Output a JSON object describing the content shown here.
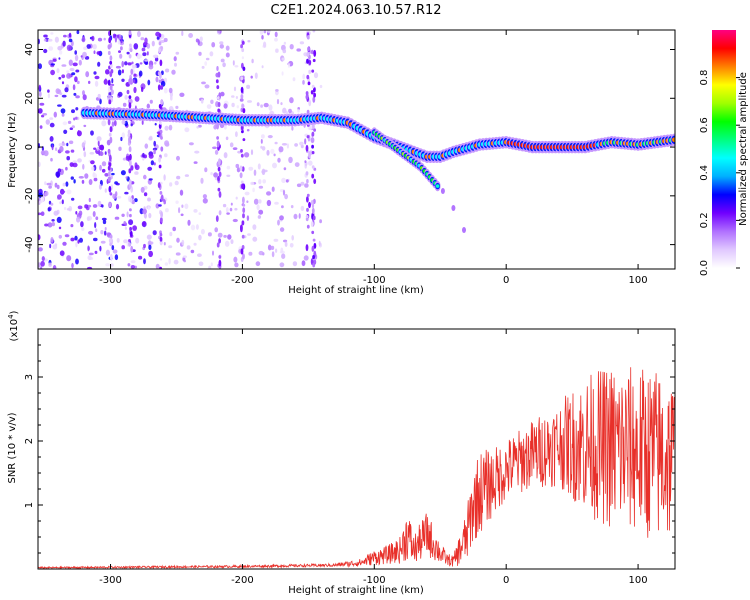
{
  "title": "C2E1.2024.063.10.57.R12",
  "chart_data": [
    {
      "type": "heatmap",
      "xlabel": "Height of straight line (km)",
      "ylabel": "Frequency (Hz)",
      "xlim": [
        -355,
        128
      ],
      "ylim": [
        -50,
        48
      ],
      "xticks": [
        -300,
        -200,
        -100,
        0,
        100
      ],
      "yticks": [
        -40,
        -20,
        0,
        20,
        40
      ],
      "colorbar": {
        "label": "Normalized spectral amplitude",
        "range": [
          0,
          1
        ],
        "ticks": [
          "0.0",
          "0.2",
          "0.4",
          "0.6",
          "0.8"
        ],
        "tick_values": [
          0.0,
          0.2,
          0.4,
          0.6,
          0.8
        ],
        "colors": [
          "#ffffff",
          "#e0c8ff",
          "#b070ff",
          "#7000ff",
          "#0000ff",
          "#00b0ff",
          "#00ffff",
          "#00ff80",
          "#00ff00",
          "#a0ff00",
          "#ffff00",
          "#ff8000",
          "#ff0000",
          "#ff0080"
        ]
      },
      "ridge": {
        "x": [
          -320,
          -260,
          -200,
          -160,
          -140,
          -120,
          -100,
          -80,
          -60,
          -50,
          -40,
          -20,
          0,
          20,
          60,
          80,
          100,
          128
        ],
        "y": [
          14,
          13,
          11,
          11,
          12,
          10,
          4,
          0,
          -4,
          -4,
          -2,
          1,
          2,
          0,
          0,
          2,
          1,
          3
        ]
      },
      "branch": {
        "x": [
          -100,
          -80,
          -65,
          -52
        ],
        "y": [
          6,
          -2,
          -8,
          -16
        ]
      },
      "tail": {
        "x": [
          -48,
          -40,
          -32
        ],
        "y": [
          -18,
          -25,
          -34
        ]
      }
    },
    {
      "type": "line",
      "xlabel": "Height of straight line (km)",
      "ylabel": "SNR (10 * v/v)",
      "multiplier": "(x10",
      "multiplier_exp": "4",
      "xlim": [
        -355,
        128
      ],
      "ylim": [
        0,
        3.75
      ],
      "xticks": [
        -300,
        -200,
        -100,
        0,
        100
      ],
      "yticks": [
        1,
        2,
        3
      ],
      "line_color": "#e8302a",
      "envelope": {
        "x": [
          -355,
          -200,
          -130,
          -110,
          -100,
          -90,
          -80,
          -75,
          -70,
          -60,
          -50,
          -45,
          -40,
          -30,
          -25,
          -20,
          -10,
          0,
          20,
          40,
          60,
          80,
          100,
          110,
          128
        ],
        "mean": [
          0.02,
          0.04,
          0.06,
          0.1,
          0.18,
          0.22,
          0.3,
          0.55,
          0.3,
          0.55,
          0.25,
          0.15,
          0.12,
          0.5,
          1.0,
          1.2,
          1.35,
          1.55,
          1.8,
          1.95,
          1.95,
          1.9,
          1.85,
          1.8,
          1.7
        ],
        "spread": [
          0.01,
          0.015,
          0.02,
          0.05,
          0.1,
          0.12,
          0.18,
          0.35,
          0.2,
          0.3,
          0.15,
          0.08,
          0.08,
          0.35,
          0.5,
          0.55,
          0.45,
          0.4,
          0.45,
          0.55,
          0.9,
          1.1,
          1.1,
          1.15,
          1.1
        ]
      }
    }
  ]
}
